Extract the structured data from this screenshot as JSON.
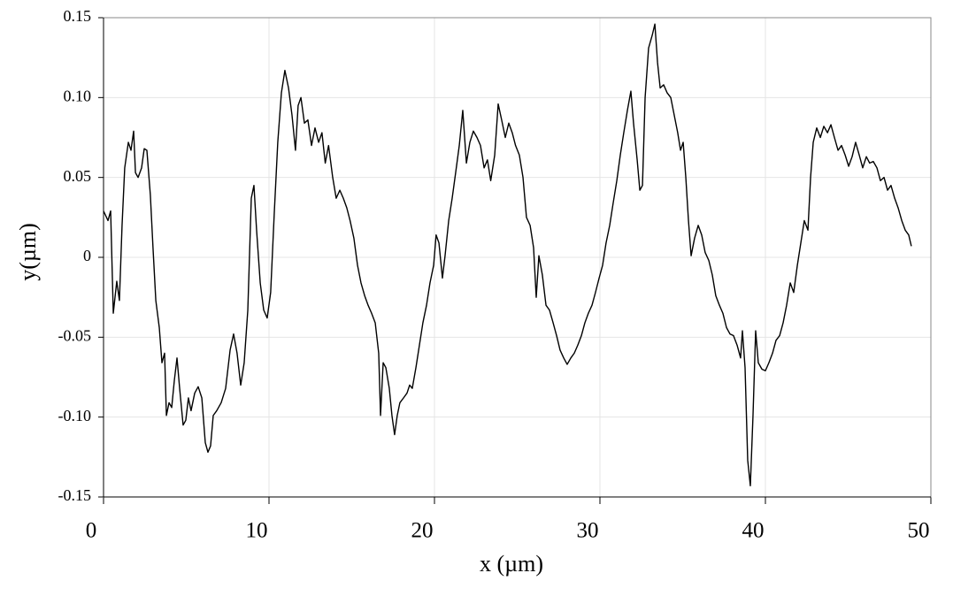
{
  "chart_data": {
    "type": "line",
    "xlabel": "x (µm)",
    "ylabel": "y(µm)",
    "xlim": [
      0,
      50
    ],
    "ylim": [
      -0.15,
      0.15
    ],
    "xticks": [
      0,
      10,
      20,
      30,
      40,
      50
    ],
    "yticks": [
      -0.15,
      {
        "value": -0.1,
        "label": "-0.10"
      },
      -0.05,
      0,
      0.05,
      {
        "value": 0.1,
        "label": "0.10"
      },
      0.15
    ],
    "grid": true,
    "series": [
      {
        "color": "#000000",
        "x": [
          0,
          0.27,
          0.43,
          0.59,
          0.8,
          0.96,
          1.12,
          1.28,
          1.5,
          1.66,
          1.82,
          1.93,
          2.09,
          2.3,
          2.46,
          2.62,
          2.83,
          2.99,
          3.16,
          3.37,
          3.53,
          3.69,
          3.8,
          3.96,
          4.12,
          4.28,
          4.44,
          4.6,
          4.81,
          4.97,
          5.13,
          5.29,
          5.51,
          5.72,
          5.94,
          6.15,
          6.31,
          6.47,
          6.63,
          6.84,
          7.11,
          7.38,
          7.65,
          7.86,
          8.07,
          8.29,
          8.5,
          8.72,
          8.93,
          9.09,
          9.25,
          9.47,
          9.68,
          9.89,
          10.1,
          10.32,
          10.53,
          10.75,
          10.96,
          11.18,
          11.39,
          11.6,
          11.76,
          11.93,
          12.14,
          12.35,
          12.57,
          12.78,
          13.0,
          13.2,
          13.4,
          13.6,
          13.85,
          14.06,
          14.28,
          14.49,
          14.7,
          14.9,
          15.13,
          15.35,
          15.56,
          15.78,
          15.99,
          16.2,
          16.42,
          16.63,
          16.74,
          16.9,
          17.06,
          17.27,
          17.43,
          17.59,
          17.75,
          17.91,
          18.13,
          18.34,
          18.5,
          18.66,
          18.88,
          19.09,
          19.3,
          19.52,
          19.73,
          19.95,
          20.1,
          20.27,
          20.48,
          20.64,
          20.86,
          21.07,
          21.28,
          21.5,
          21.71,
          21.93,
          22.14,
          22.35,
          22.57,
          22.78,
          23.0,
          23.2,
          23.4,
          23.64,
          23.85,
          24.06,
          24.28,
          24.49,
          24.7,
          24.9,
          25.13,
          25.35,
          25.56,
          25.78,
          25.99,
          26.15,
          26.31,
          26.52,
          26.74,
          26.95,
          27.17,
          27.38,
          27.59,
          27.81,
          28.02,
          28.24,
          28.45,
          28.66,
          28.88,
          29.09,
          29.3,
          29.52,
          29.73,
          29.95,
          30.16,
          30.37,
          30.59,
          30.8,
          31.02,
          31.23,
          31.44,
          31.66,
          31.87,
          32.03,
          32.25,
          32.41,
          32.57,
          32.73,
          32.94,
          33.16,
          33.32,
          33.48,
          33.64,
          33.85,
          34.06,
          34.28,
          34.49,
          34.7,
          34.87,
          35.03,
          35.19,
          35.35,
          35.51,
          35.72,
          35.94,
          36.15,
          36.36,
          36.58,
          36.79,
          37.0,
          37.22,
          37.43,
          37.65,
          37.86,
          38.07,
          38.29,
          38.5,
          38.61,
          38.77,
          38.93,
          39.09,
          39.25,
          39.41,
          39.57,
          39.79,
          40.0,
          40.21,
          40.43,
          40.64,
          40.86,
          41.07,
          41.28,
          41.5,
          41.71,
          41.93,
          42.14,
          42.35,
          42.57,
          42.73,
          42.89,
          43.1,
          43.32,
          43.53,
          43.75,
          43.96,
          44.17,
          44.39,
          44.6,
          44.82,
          45.03,
          45.24,
          45.45,
          45.67,
          45.88,
          46.1,
          46.3,
          46.52,
          46.74,
          46.95,
          47.17,
          47.38,
          47.59,
          47.81,
          48.02,
          48.24,
          48.45,
          48.66,
          48.82
        ],
        "values": [
          0.029,
          0.023,
          0.029,
          -0.035,
          -0.015,
          -0.027,
          0.02,
          0.056,
          0.072,
          0.067,
          0.079,
          0.053,
          0.05,
          0.056,
          0.068,
          0.067,
          0.039,
          0.006,
          -0.027,
          -0.044,
          -0.066,
          -0.06,
          -0.099,
          -0.091,
          -0.094,
          -0.077,
          -0.063,
          -0.082,
          -0.105,
          -0.102,
          -0.088,
          -0.096,
          -0.085,
          -0.081,
          -0.088,
          -0.116,
          -0.122,
          -0.118,
          -0.099,
          -0.096,
          -0.091,
          -0.082,
          -0.058,
          -0.048,
          -0.06,
          -0.08,
          -0.066,
          -0.033,
          0.037,
          0.045,
          0.017,
          -0.016,
          -0.033,
          -0.038,
          -0.022,
          0.028,
          0.072,
          0.103,
          0.117,
          0.106,
          0.089,
          0.067,
          0.095,
          0.1,
          0.084,
          0.086,
          0.07,
          0.081,
          0.072,
          0.078,
          0.059,
          0.07,
          0.05,
          0.037,
          0.042,
          0.037,
          0.031,
          0.023,
          0.012,
          -0.005,
          -0.016,
          -0.024,
          -0.03,
          -0.035,
          -0.041,
          -0.06,
          -0.099,
          -0.066,
          -0.069,
          -0.082,
          -0.099,
          -0.111,
          -0.099,
          -0.091,
          -0.088,
          -0.085,
          -0.08,
          -0.082,
          -0.069,
          -0.055,
          -0.041,
          -0.03,
          -0.016,
          -0.005,
          0.014,
          0.009,
          -0.013,
          0.001,
          0.023,
          0.037,
          0.053,
          0.07,
          0.092,
          0.059,
          0.072,
          0.079,
          0.075,
          0.07,
          0.056,
          0.061,
          0.048,
          0.064,
          0.096,
          0.086,
          0.075,
          0.084,
          0.078,
          0.07,
          0.064,
          0.05,
          0.025,
          0.02,
          0.006,
          -0.025,
          0.001,
          -0.011,
          -0.03,
          -0.033,
          -0.041,
          -0.049,
          -0.058,
          -0.063,
          -0.067,
          -0.063,
          -0.06,
          -0.055,
          -0.049,
          -0.041,
          -0.035,
          -0.03,
          -0.022,
          -0.013,
          -0.005,
          0.009,
          0.02,
          0.034,
          0.048,
          0.064,
          0.078,
          0.092,
          0.104,
          0.084,
          0.061,
          0.042,
          0.045,
          0.1,
          0.131,
          0.139,
          0.146,
          0.122,
          0.106,
          0.108,
          0.103,
          0.1,
          0.089,
          0.078,
          0.067,
          0.072,
          0.05,
          0.023,
          0.001,
          0.012,
          0.02,
          0.014,
          0.003,
          -0.002,
          -0.011,
          -0.024,
          -0.03,
          -0.035,
          -0.044,
          -0.048,
          -0.049,
          -0.055,
          -0.063,
          -0.046,
          -0.069,
          -0.127,
          -0.143,
          -0.099,
          -0.046,
          -0.066,
          -0.07,
          -0.071,
          -0.066,
          -0.06,
          -0.052,
          -0.049,
          -0.041,
          -0.03,
          -0.016,
          -0.022,
          -0.005,
          0.009,
          0.023,
          0.017,
          0.05,
          0.072,
          0.081,
          0.075,
          0.082,
          0.078,
          0.083,
          0.075,
          0.067,
          0.07,
          0.064,
          0.057,
          0.063,
          0.072,
          0.064,
          0.056,
          0.063,
          0.059,
          0.06,
          0.056,
          0.048,
          0.05,
          0.042,
          0.045,
          0.037,
          0.031,
          0.023,
          0.017,
          0.014,
          0.007
        ]
      }
    ]
  }
}
